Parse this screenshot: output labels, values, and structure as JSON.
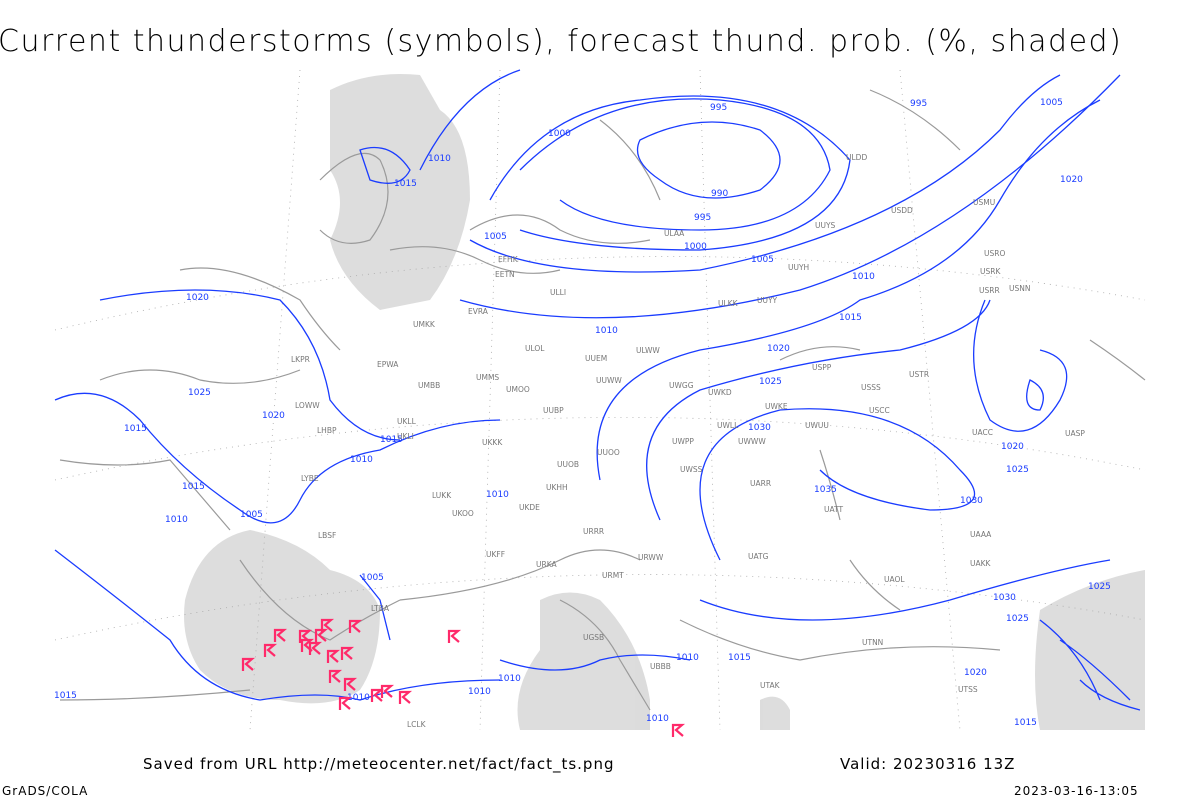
{
  "title": "Current thunderstorms (symbols), forecast thund. prob. (%, shaded)",
  "footer": {
    "source": "Saved from URL http://meteocenter.net/fact/fact_ts.png",
    "valid": "Valid: 20230316 13Z",
    "software": "GrADS/COLA",
    "timestamp": "2023-03-16-13:05"
  },
  "colors": {
    "isobar": "#1a3cff",
    "thunderstorm_symbol": "#ff2a6a",
    "shading": "#d8d8d8",
    "coastline": "#9a9a9a"
  },
  "isobar_labels": [
    "995",
    "995",
    "1000",
    "1005",
    "1010",
    "1015",
    "990",
    "995",
    "1000",
    "1005",
    "1005",
    "1010",
    "1015",
    "1010",
    "1020",
    "1020",
    "1025",
    "1030",
    "1035",
    "1030",
    "1025",
    "1020",
    "1020",
    "1025",
    "1020",
    "1015",
    "1015",
    "1010",
    "1015",
    "1010",
    "1005",
    "1010",
    "1005",
    "1010",
    "1015",
    "1010",
    "1010",
    "1010",
    "1010",
    "1015",
    "1020",
    "1025",
    "1030",
    "1025",
    "1015"
  ],
  "stations": [
    "ULAA",
    "EFHK",
    "EETN",
    "ULLI",
    "UMKK",
    "EVRA",
    "ULOL",
    "UUEM",
    "UUWW",
    "UMMS",
    "UMOO",
    "UUBP",
    "UKLL",
    "UKLI",
    "UKKK",
    "UKHH",
    "UKOO",
    "UKDE",
    "UKFF",
    "URKA",
    "URRR",
    "URMT",
    "URWW",
    "UUOO",
    "UUOB",
    "UWGG",
    "UWKD",
    "UWPP",
    "UWSS",
    "UWUU",
    "UWKE",
    "UWLL",
    "UWWW",
    "UATT",
    "UARR",
    "UACC",
    "UAAA",
    "USSS",
    "USCC",
    "USPP",
    "USTR",
    "USRR",
    "USNN",
    "USRK",
    "USRO",
    "USMU",
    "USDD",
    "ULDD",
    "UUYH",
    "UUYS",
    "UUYY",
    "ULKK",
    "ULWW",
    "EPWA",
    "UMBB",
    "LKPR",
    "LOWW",
    "LHBP",
    "LYBE",
    "LBSF",
    "LUKK",
    "LTBA",
    "LCLK",
    "UGSB",
    "UBBB",
    "UTAK",
    "UATG",
    "UAKK",
    "UASP",
    "UAOL",
    "UTNN",
    "UTSS"
  ]
}
